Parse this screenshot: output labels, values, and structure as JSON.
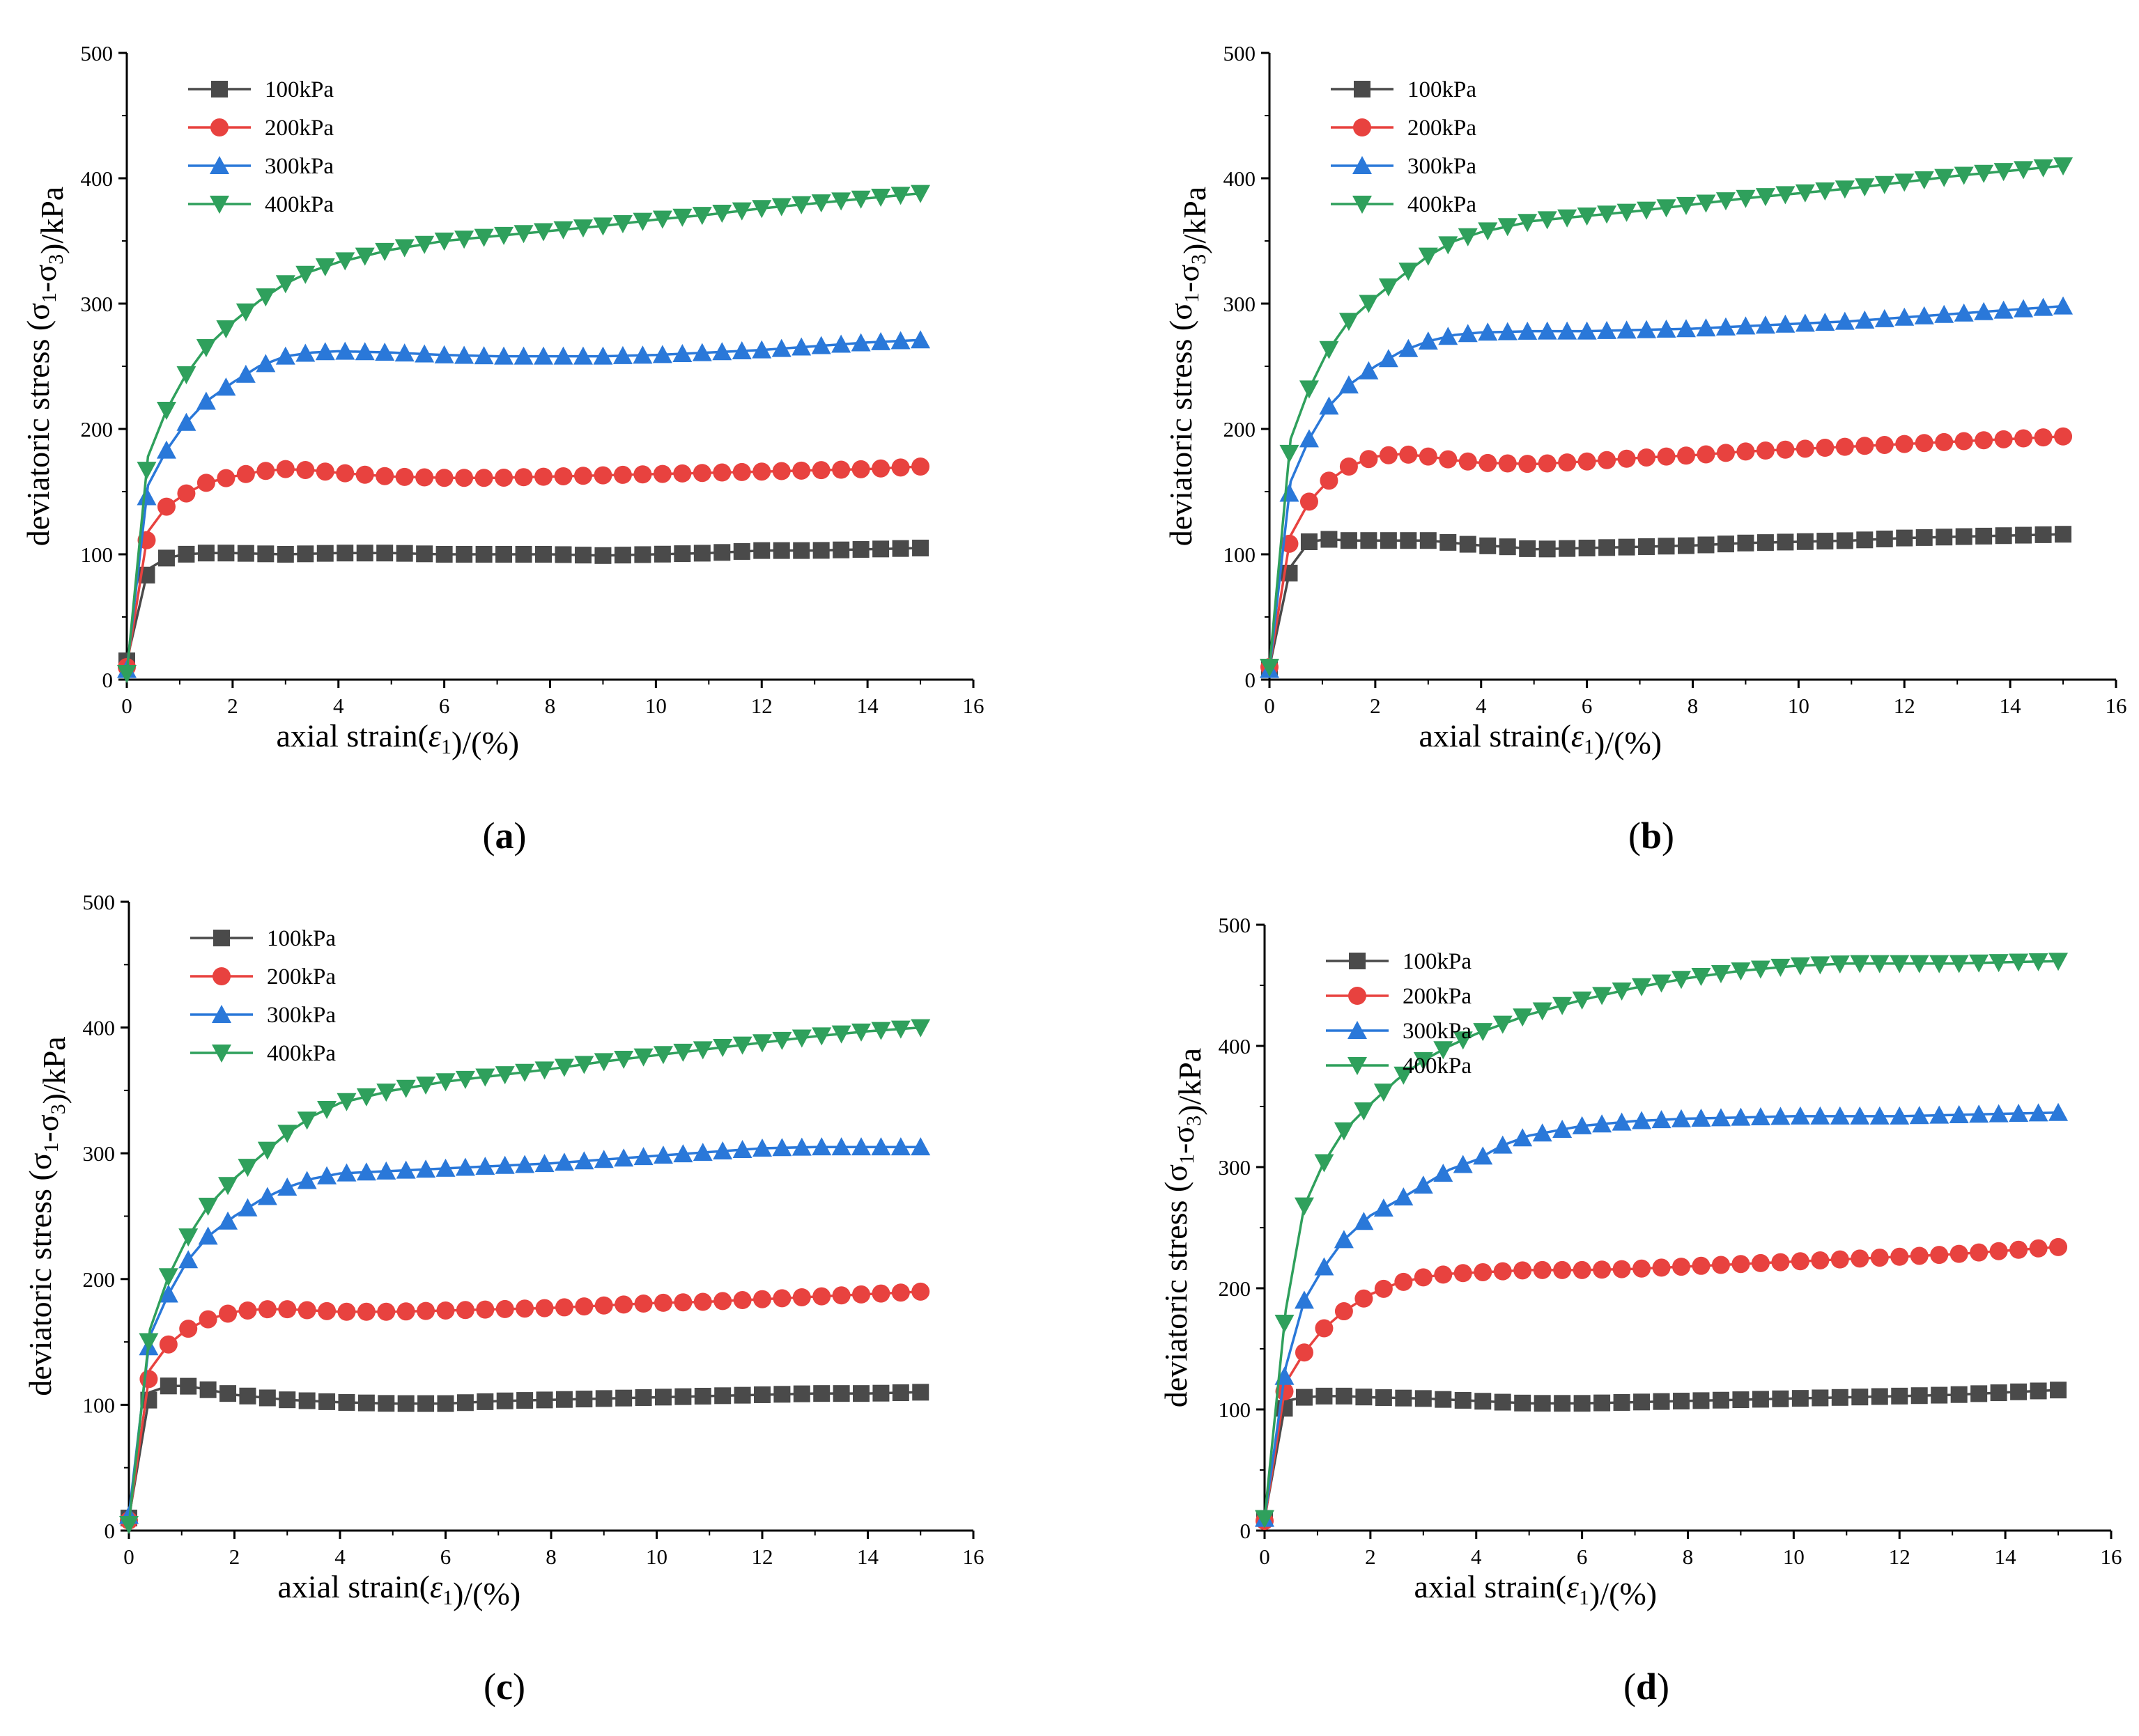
{
  "figure": {
    "colors": {
      "100kPa": "#4a4a4a",
      "200kPa": "#e8423f",
      "300kPa": "#2a78d9",
      "400kPa": "#2fa05c"
    },
    "markers": {
      "100kPa": "square",
      "200kPa": "circle",
      "300kPa": "triangle-up",
      "400kPa": "triangle-down"
    }
  },
  "chart_data": [
    {
      "type": "line",
      "panel_label": "a",
      "xlabel": "axial strain(ε1)/(%)",
      "ylabel": "deviatoric stress (σ1-σ3)/kPa",
      "xlim": [
        0,
        16
      ],
      "ylim": [
        0,
        500
      ],
      "xticks": [
        0,
        2,
        4,
        6,
        8,
        10,
        12,
        14,
        16
      ],
      "yticks": [
        0,
        100,
        200,
        300,
        400,
        500
      ],
      "grid": false,
      "legend": "top-left",
      "series": [
        {
          "name": "100kPa",
          "x": [
            0,
            0.4,
            0.75,
            1.1,
            1.5,
            2,
            3,
            4,
            5,
            6,
            7,
            8,
            9,
            10,
            11,
            12,
            13,
            14,
            15
          ],
          "y": [
            15,
            88,
            97,
            100,
            101,
            101,
            100,
            101,
            101,
            100,
            100,
            100,
            99,
            100,
            101,
            103,
            103,
            104,
            105
          ]
        },
        {
          "name": "200kPa",
          "x": [
            0,
            0.4,
            0.75,
            1.1,
            1.5,
            2,
            2.5,
            3,
            3.5,
            4,
            5,
            6,
            7,
            8,
            9,
            10,
            11,
            12,
            13,
            14,
            15
          ],
          "y": [
            10,
            118,
            138,
            148,
            157,
            162,
            166,
            168,
            167,
            165,
            162,
            161,
            161,
            162,
            163,
            164,
            165,
            166,
            167,
            168,
            170
          ]
        },
        {
          "name": "300kPa",
          "x": [
            0,
            0.4,
            0.75,
            1.1,
            1.5,
            2,
            2.5,
            3,
            3.5,
            4,
            5,
            6,
            7,
            8,
            9,
            10,
            11,
            12,
            13,
            14,
            15
          ],
          "y": [
            8,
            155,
            183,
            204,
            222,
            237,
            250,
            258,
            261,
            262,
            261,
            259,
            258,
            258,
            258,
            259,
            261,
            263,
            266,
            269,
            271
          ]
        },
        {
          "name": "400kPa",
          "x": [
            0,
            0.4,
            0.75,
            1.1,
            1.5,
            2,
            2.5,
            3,
            3.5,
            4,
            5,
            6,
            7,
            8,
            9,
            10,
            11,
            12,
            13,
            14,
            15
          ],
          "y": [
            5,
            178,
            215,
            242,
            265,
            285,
            302,
            316,
            326,
            333,
            343,
            350,
            354,
            358,
            362,
            367,
            371,
            376,
            380,
            384,
            388
          ]
        }
      ]
    },
    {
      "type": "line",
      "panel_label": "b",
      "xlabel": "axial strain(ε1)/(%)",
      "ylabel": "deviatoric stress (σ1-σ3)/kPa",
      "xlim": [
        0,
        16
      ],
      "ylim": [
        0,
        500
      ],
      "xticks": [
        0,
        2,
        4,
        6,
        8,
        10,
        12,
        14,
        16
      ],
      "yticks": [
        0,
        100,
        200,
        300,
        400,
        500
      ],
      "grid": false,
      "legend": "top-left",
      "series": [
        {
          "name": "100kPa",
          "x": [
            0,
            0.4,
            0.75,
            1.1,
            1.5,
            2,
            3,
            3.5,
            4,
            4.5,
            5,
            6,
            7,
            8,
            9,
            10,
            11,
            12,
            13,
            14,
            15
          ],
          "y": [
            10,
            90,
            110,
            112,
            111,
            111,
            111,
            109,
            107,
            106,
            104,
            105,
            106,
            107,
            109,
            110,
            111,
            113,
            114,
            115,
            116
          ]
        },
        {
          "name": "200kPa",
          "x": [
            0,
            0.4,
            0.75,
            1.1,
            1.5,
            2,
            2.5,
            3,
            3.5,
            4,
            5,
            6,
            7,
            8,
            9,
            10,
            11,
            12,
            13,
            14,
            15
          ],
          "y": [
            10,
            115,
            142,
            158,
            170,
            178,
            180,
            178,
            175,
            173,
            172,
            174,
            177,
            179,
            182,
            184,
            186,
            188,
            190,
            192,
            194
          ]
        },
        {
          "name": "300kPa",
          "x": [
            0,
            0.4,
            0.75,
            1.1,
            1.5,
            2,
            2.5,
            3,
            3.5,
            4,
            5,
            6,
            7,
            8,
            9,
            10,
            11,
            12,
            13,
            14,
            15
          ],
          "y": [
            8,
            158,
            192,
            217,
            235,
            250,
            262,
            270,
            275,
            277,
            278,
            278,
            279,
            280,
            282,
            284,
            286,
            289,
            292,
            295,
            298
          ]
        },
        {
          "name": "400kPa",
          "x": [
            0,
            0.4,
            0.75,
            1.1,
            1.5,
            2,
            2.5,
            3,
            3.5,
            4,
            5,
            6,
            7,
            8,
            9,
            10,
            11,
            12,
            13,
            14,
            15
          ],
          "y": [
            10,
            192,
            232,
            262,
            286,
            305,
            322,
            338,
            350,
            357,
            366,
            370,
            374,
            379,
            384,
            388,
            392,
            397,
            402,
            406,
            410
          ]
        }
      ]
    },
    {
      "type": "line",
      "panel_label": "c",
      "xlabel": "axial strain(ε1)/(%)",
      "ylabel": "deviatoric stress (σ1-σ3)/kPa",
      "xlim": [
        0,
        16
      ],
      "ylim": [
        0,
        500
      ],
      "xticks": [
        0,
        2,
        4,
        6,
        8,
        10,
        12,
        14,
        16
      ],
      "yticks": [
        0,
        100,
        200,
        300,
        400,
        500
      ],
      "grid": false,
      "legend": "top-left",
      "series": [
        {
          "name": "100kPa",
          "x": [
            0,
            0.4,
            0.75,
            1.1,
            1.5,
            2,
            2.5,
            3,
            4,
            5,
            6,
            7,
            8,
            9,
            10,
            11,
            12,
            13,
            14,
            15
          ],
          "y": [
            10,
            110,
            115,
            115,
            112,
            108,
            106,
            104,
            102,
            101,
            101,
            103,
            104,
            105,
            106,
            107,
            108,
            109,
            109,
            110
          ]
        },
        {
          "name": "200kPa",
          "x": [
            0,
            0.4,
            0.75,
            1.1,
            1.5,
            2,
            2.5,
            3,
            3.5,
            4,
            5,
            6,
            7,
            8,
            9,
            10,
            11,
            12,
            13,
            14,
            15
          ],
          "y": [
            8,
            128,
            148,
            160,
            168,
            174,
            176,
            176,
            175,
            174,
            174,
            175,
            176,
            177,
            179,
            181,
            182,
            184,
            186,
            188,
            190
          ]
        },
        {
          "name": "300kPa",
          "x": [
            0,
            0.4,
            0.75,
            1.1,
            1.5,
            2,
            2.5,
            3,
            3.5,
            4,
            5,
            6,
            7,
            8,
            9,
            10,
            11,
            12,
            13,
            14,
            15
          ],
          "y": [
            12,
            155,
            188,
            214,
            234,
            250,
            263,
            273,
            280,
            284,
            286,
            288,
            290,
            292,
            295,
            298,
            301,
            304,
            305,
            305,
            305
          ]
        },
        {
          "name": "400kPa",
          "x": [
            0,
            0.4,
            0.75,
            1.1,
            1.5,
            2,
            2.5,
            3,
            3.5,
            4,
            5,
            6,
            7,
            8,
            9,
            10,
            11,
            12,
            13,
            14,
            15
          ],
          "y": [
            5,
            160,
            202,
            232,
            258,
            280,
            298,
            316,
            330,
            340,
            350,
            357,
            362,
            367,
            373,
            378,
            383,
            388,
            393,
            397,
            400
          ]
        }
      ]
    },
    {
      "type": "line",
      "panel_label": "d",
      "xlabel": "axial strain(ε1)/(%)",
      "ylabel": "deviatoric stress (σ1-σ3)/kPa",
      "xlim": [
        0,
        16
      ],
      "ylim": [
        0,
        500
      ],
      "xticks": [
        0,
        2,
        4,
        6,
        8,
        10,
        12,
        14,
        16
      ],
      "yticks": [
        0,
        100,
        200,
        300,
        400,
        500
      ],
      "grid": false,
      "legend": "top-left",
      "series": [
        {
          "name": "100kPa",
          "x": [
            0,
            0.4,
            0.75,
            1.1,
            1.5,
            2,
            3,
            4,
            5,
            6,
            7,
            8,
            9,
            10,
            11,
            12,
            13,
            14,
            15
          ],
          "y": [
            10,
            107,
            110,
            111,
            111,
            110,
            109,
            107,
            105,
            105,
            106,
            107,
            108,
            109,
            110,
            111,
            112,
            114,
            116
          ]
        },
        {
          "name": "200kPa",
          "x": [
            0,
            0.4,
            0.75,
            1.1,
            1.5,
            2,
            2.5,
            3,
            3.5,
            4,
            5,
            6,
            7,
            8,
            9,
            10,
            11,
            12,
            13,
            14,
            15
          ],
          "y": [
            8,
            122,
            147,
            166,
            181,
            195,
            204,
            209,
            212,
            213,
            215,
            215,
            216,
            218,
            220,
            222,
            224,
            226,
            228,
            231,
            234
          ]
        },
        {
          "name": "300kPa",
          "x": [
            0,
            0.4,
            0.75,
            1.1,
            1.5,
            2,
            2.5,
            3,
            3.5,
            4,
            4.5,
            5,
            6,
            7,
            8,
            9,
            10,
            11,
            12,
            13,
            14,
            15
          ],
          "y": [
            10,
            135,
            190,
            216,
            240,
            260,
            272,
            285,
            298,
            306,
            318,
            326,
            334,
            338,
            340,
            341,
            342,
            342,
            342,
            343,
            344,
            345
          ]
        },
        {
          "name": "400kPa",
          "x": [
            0,
            0.4,
            0.75,
            1.1,
            1.5,
            2,
            2.5,
            3,
            3.5,
            4,
            5,
            6,
            7,
            8,
            9,
            10,
            11,
            12,
            13,
            14,
            15
          ],
          "y": [
            10,
            182,
            268,
            302,
            330,
            352,
            372,
            388,
            400,
            410,
            426,
            438,
            448,
            456,
            462,
            466,
            468,
            468,
            468,
            469,
            470
          ]
        }
      ]
    }
  ]
}
